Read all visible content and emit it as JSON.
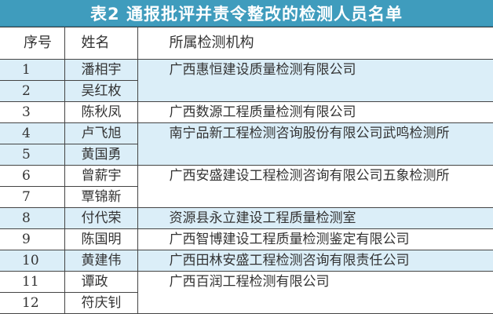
{
  "title": "表2  通报批评并责令整改的检测人员名单",
  "headers": {
    "num": "序号",
    "name": "姓名",
    "org": "所属检测机构"
  },
  "groups": [
    {
      "band": "blue",
      "org": "广西惠恒建设质量检测有限公司",
      "people": [
        {
          "num": "1",
          "name": "潘相宇"
        },
        {
          "num": "2",
          "name": "吴红枚"
        }
      ]
    },
    {
      "band": "white",
      "org": "广西数源工程质量检测有限公司",
      "people": [
        {
          "num": "3",
          "name": "陈秋凤"
        }
      ]
    },
    {
      "band": "blue",
      "org": "南宁品新工程检测咨询股份有限公司武鸣检测所",
      "people": [
        {
          "num": "4",
          "name": "卢飞旭"
        },
        {
          "num": "5",
          "name": "黄国勇"
        }
      ]
    },
    {
      "band": "white",
      "org": "广西安盛建设工程检测咨询有限公司五象检测所",
      "people": [
        {
          "num": "6",
          "name": "曾薪宇"
        },
        {
          "num": "7",
          "name": "覃锦新"
        }
      ]
    },
    {
      "band": "blue",
      "org": "资源县永立建设工程质量检测室",
      "people": [
        {
          "num": "8",
          "name": "付代荣"
        }
      ]
    },
    {
      "band": "white",
      "org": "广西智博建设工程质量检测鉴定有限公司",
      "people": [
        {
          "num": "9",
          "name": "陈国明"
        }
      ]
    },
    {
      "band": "blue",
      "org": "广西田林安盛工程检测咨询有限责任公司",
      "people": [
        {
          "num": "10",
          "name": "黄建伟"
        }
      ]
    },
    {
      "band": "white",
      "org": "广西百润工程检测有限公司",
      "people": [
        {
          "num": "11",
          "name": "谭政"
        },
        {
          "num": "12",
          "name": "符庆钊"
        }
      ]
    }
  ],
  "colors": {
    "title_bar": "#3f9cbd",
    "band_blue": "#dbeef8"
  }
}
